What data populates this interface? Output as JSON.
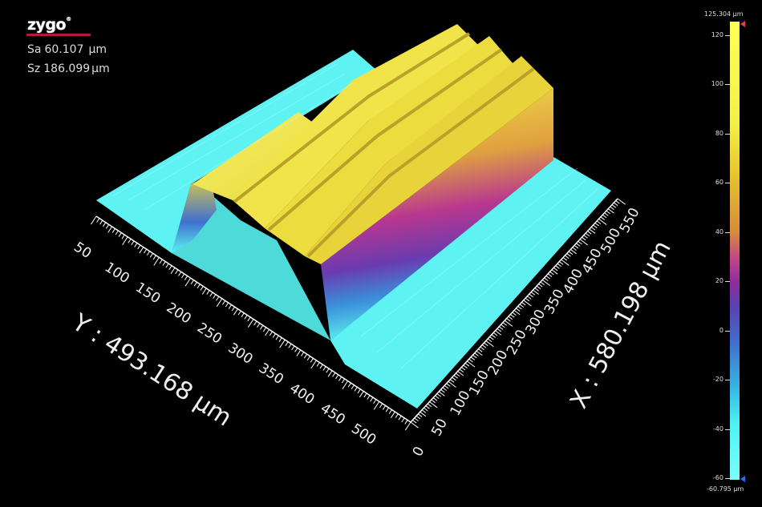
{
  "logo": {
    "text": "zygo",
    "registered": "®"
  },
  "stats": [
    {
      "label": "Sa",
      "value": "60.107",
      "unit": "µm"
    },
    {
      "label": "Sz",
      "value": "186.099",
      "unit": "µm"
    }
  ],
  "colorbar": {
    "max_label": "125.304 µm",
    "min_label": "-60.795 µm",
    "ticks": [
      "120",
      "100",
      "80",
      "60",
      "40",
      "20",
      "0",
      "-20",
      "-40",
      "-60"
    ]
  },
  "axes": {
    "y_title": "Y : 493.168 µm",
    "x_title": "X : 580.198 µm",
    "y_ticks": [
      "50",
      "100",
      "150",
      "200",
      "250",
      "300",
      "350",
      "400",
      "450",
      "500"
    ],
    "x_ticks": [
      "0",
      "50",
      "100",
      "150",
      "200",
      "250",
      "300",
      "350",
      "400",
      "450",
      "500",
      "550"
    ]
  },
  "colors": {
    "flat": "#5ef2f2",
    "ridge": "#f2e84a",
    "ridge_side": "#a22f9a"
  }
}
